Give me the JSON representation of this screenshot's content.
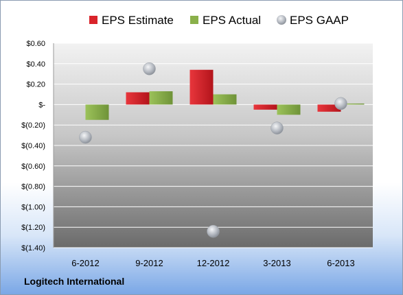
{
  "chart_data": {
    "type": "bar",
    "categories": [
      "6-2012",
      "9-2012",
      "12-2012",
      "3-2013",
      "6-2013"
    ],
    "series": [
      {
        "name": "EPS Estimate",
        "kind": "bar",
        "color": "#d9242b",
        "values": [
          null,
          0.12,
          0.34,
          -0.05,
          -0.07
        ]
      },
      {
        "name": "EPS Actual",
        "kind": "bar",
        "color": "#8ab04a",
        "values": [
          -0.15,
          0.13,
          0.1,
          -0.1,
          0.01
        ]
      },
      {
        "name": "EPS GAAP",
        "kind": "point",
        "color": "#b8bec8",
        "values": [
          -0.32,
          0.35,
          -1.24,
          -0.23,
          0.01
        ]
      }
    ],
    "ylim": [
      -1.4,
      0.6
    ],
    "y_ticks": [
      0.6,
      0.4,
      0.2,
      0,
      -0.2,
      -0.4,
      -0.6,
      -0.8,
      -1.0,
      -1.2,
      -1.4
    ],
    "y_tick_labels": [
      "$0.60",
      "$0.40",
      "$0.20",
      "$-",
      "$(0.20)",
      "$(0.40)",
      "$(0.60)",
      "$(0.80)",
      "$(1.00)",
      "$(1.20)",
      "$(1.40)"
    ],
    "grid": true,
    "legend_position": "top"
  },
  "footer": {
    "company": "Logitech International"
  }
}
